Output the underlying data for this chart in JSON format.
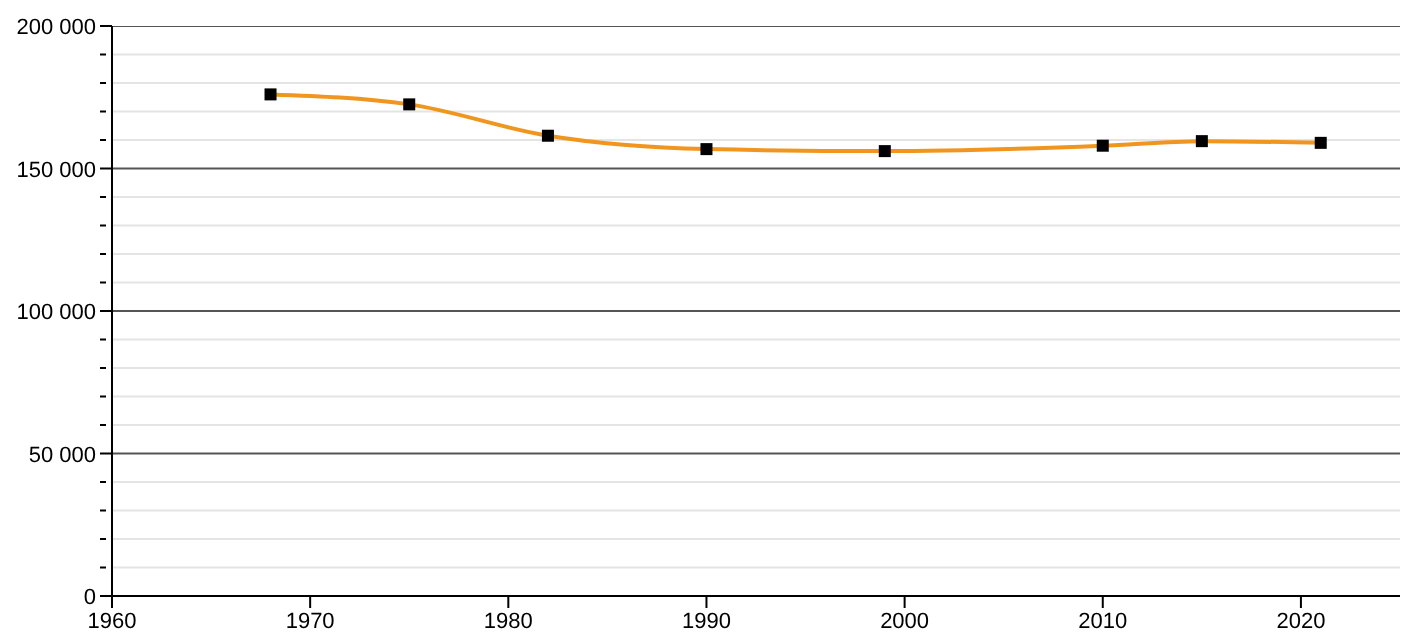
{
  "chart_data": {
    "type": "line",
    "x": [
      1968,
      1975,
      1982,
      1990,
      1999,
      2010,
      2015,
      2021
    ],
    "series": [
      {
        "color": "#f0961e",
        "values": [
          176000,
          172500,
          161500,
          156800,
          156100,
          158000,
          159600,
          159000
        ]
      }
    ],
    "xlim": [
      1960,
      2025
    ],
    "xticks": [
      1960,
      1970,
      1980,
      1990,
      2000,
      2010,
      2020
    ],
    "ylim": [
      0,
      200000
    ],
    "yticks": [
      {
        "value": 0,
        "label": "0"
      },
      {
        "value": 10000,
        "label": null
      },
      {
        "value": 20000,
        "label": null
      },
      {
        "value": 30000,
        "label": null
      },
      {
        "value": 40000,
        "label": null
      },
      {
        "value": 50000,
        "label": "50 000"
      },
      {
        "value": 60000,
        "label": null
      },
      {
        "value": 70000,
        "label": null
      },
      {
        "value": 80000,
        "label": null
      },
      {
        "value": 90000,
        "label": null
      },
      {
        "value": 100000,
        "label": "100 000"
      },
      {
        "value": 110000,
        "label": null
      },
      {
        "value": 120000,
        "label": null
      },
      {
        "value": 130000,
        "label": null
      },
      {
        "value": 140000,
        "label": null
      },
      {
        "value": 150000,
        "label": "150 000"
      },
      {
        "value": 160000,
        "label": null
      },
      {
        "value": 170000,
        "label": null
      },
      {
        "value": 180000,
        "label": null
      },
      {
        "value": 190000,
        "label": null
      },
      {
        "value": 200000,
        "label": "200 000"
      }
    ],
    "grid": "y",
    "marker": "square",
    "line_style": "solid",
    "legend": false
  }
}
